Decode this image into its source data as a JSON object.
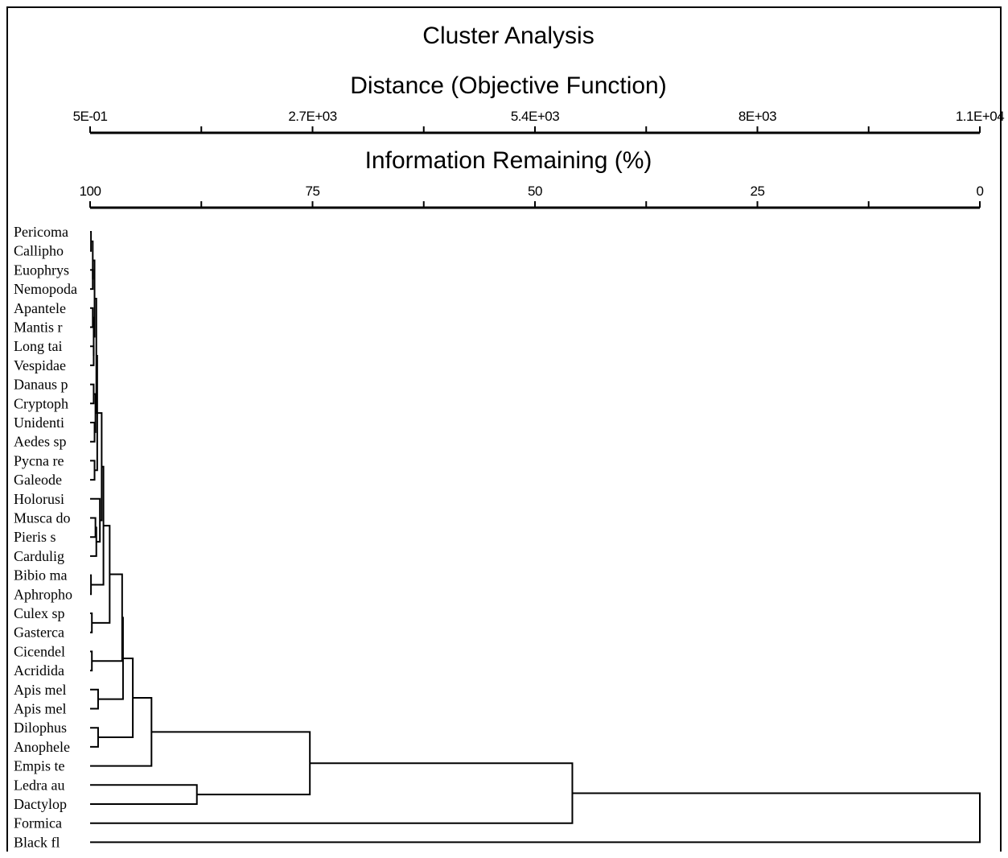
{
  "chart_data": {
    "type": "dendrogram",
    "title": "Cluster Analysis",
    "axes": {
      "distance": {
        "label": "Distance (Objective Function)",
        "tick_labels": [
          "5E-01",
          "2.7E+03",
          "5.4E+03",
          "8E+03",
          "1.1E+04"
        ],
        "range": [
          0.5,
          11000
        ]
      },
      "info": {
        "label": "Information Remaining (%)",
        "tick_labels": [
          "100",
          "75",
          "50",
          "25",
          "0"
        ],
        "range": [
          100,
          0
        ]
      }
    },
    "leaves": [
      "Pericoma",
      "Callipho",
      "Euophrys",
      "Nemopoda",
      "Apantele",
      "Mantis r",
      "Long tai",
      "Vespidae",
      "Danaus p",
      "Cryptoph",
      "Unidenti",
      "Aedes sp",
      "Pycna re",
      "Galeode",
      "Holorusi",
      "Musca do",
      "Pieris s",
      "Cardulig",
      "Bibio ma",
      "Aphropho",
      "Culex sp",
      "Gasterca",
      "Cicendel",
      "Acridida",
      "Apis mel",
      "Apis mel",
      "Dilophus",
      "Anophele",
      "Empis te",
      "Ledra au",
      "Dactylop",
      "Formica",
      "Black fl"
    ],
    "merges": [
      {
        "a": "L0",
        "b": "L1",
        "info": 99.9
      },
      {
        "a": "L2",
        "b": "L3",
        "info": 99.7
      },
      {
        "a": "M0",
        "b": "M1",
        "info": 99.8
      },
      {
        "a": "L4",
        "b": "L5",
        "info": 99.7
      },
      {
        "a": "L6",
        "b": "L7",
        "info": 99.6
      },
      {
        "a": "M3",
        "b": "M4",
        "info": 99.6
      },
      {
        "a": "M2",
        "b": "M5",
        "info": 99.5
      },
      {
        "a": "L8",
        "b": "L9",
        "info": 99.6
      },
      {
        "a": "L10",
        "b": "L11",
        "info": 99.5
      },
      {
        "a": "M7",
        "b": "M8",
        "info": 99.4
      },
      {
        "a": "M6",
        "b": "M9",
        "info": 99.3
      },
      {
        "a": "L12",
        "b": "L13",
        "info": 99.5
      },
      {
        "a": "M10",
        "b": "M11",
        "info": 99.2
      },
      {
        "a": "L15",
        "b": "L16",
        "info": 99.4
      },
      {
        "a": "M13",
        "b": "L17",
        "info": 99.3
      },
      {
        "a": "L14",
        "b": "M14",
        "info": 98.9
      },
      {
        "a": "M12",
        "b": "M15",
        "info": 98.7
      },
      {
        "a": "L18",
        "b": "L19",
        "info": 99.9
      },
      {
        "a": "M16",
        "b": "M17",
        "info": 98.5
      },
      {
        "a": "L20",
        "b": "L21",
        "info": 99.8
      },
      {
        "a": "M18",
        "b": "M19",
        "info": 97.8
      },
      {
        "a": "L22",
        "b": "L23",
        "info": 99.8
      },
      {
        "a": "M20",
        "b": "M21",
        "info": 96.4
      },
      {
        "a": "L24",
        "b": "L25",
        "info": 99.1
      },
      {
        "a": "M22",
        "b": "M23",
        "info": 96.3
      },
      {
        "a": "L26",
        "b": "L27",
        "info": 99.1
      },
      {
        "a": "M24",
        "b": "M25",
        "info": 95.2
      },
      {
        "a": "M26",
        "b": "L28",
        "info": 93.1
      },
      {
        "a": "L29",
        "b": "L30",
        "info": 88.0
      },
      {
        "a": "M27",
        "b": "M28",
        "info": 75.3
      },
      {
        "a": "M29",
        "b": "L31",
        "info": 45.8
      },
      {
        "a": "M30",
        "b": "L32",
        "info": 0
      }
    ]
  }
}
